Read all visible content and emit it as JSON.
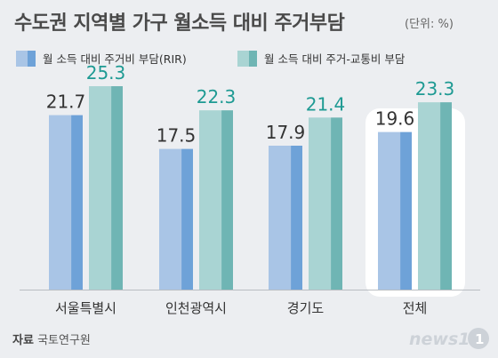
{
  "title": "수도권 지역별 가구 월소득 대비 주거부담",
  "unit": "(단위: %)",
  "source_label": "자료",
  "source": "국토연구원",
  "logo": "news1",
  "colors": {
    "rir_front": "#a9c5e6",
    "rir_side": "#6ea2d8",
    "trans_front": "#a9d4d3",
    "trans_side": "#6fb5b4",
    "value_rir": "#333333",
    "value_trans": "#1e9a93",
    "panel": "#ffffff",
    "axis": "#b9bdc2"
  },
  "chart_data": {
    "type": "bar",
    "title": "수도권 지역별 가구 월소득 대비 주거부담",
    "categories": [
      "서울특별시",
      "인천광역시",
      "경기도",
      "전체"
    ],
    "series": [
      {
        "name": "월 소득 대비 주거비 부담(RIR)",
        "values": [
          21.7,
          17.5,
          17.9,
          19.6
        ]
      },
      {
        "name": "월 소득 대비 주거-교통비 부담",
        "values": [
          25.3,
          22.3,
          21.4,
          23.3
        ]
      }
    ],
    "highlight": "전체",
    "legend": "top-left",
    "grid": false
  }
}
